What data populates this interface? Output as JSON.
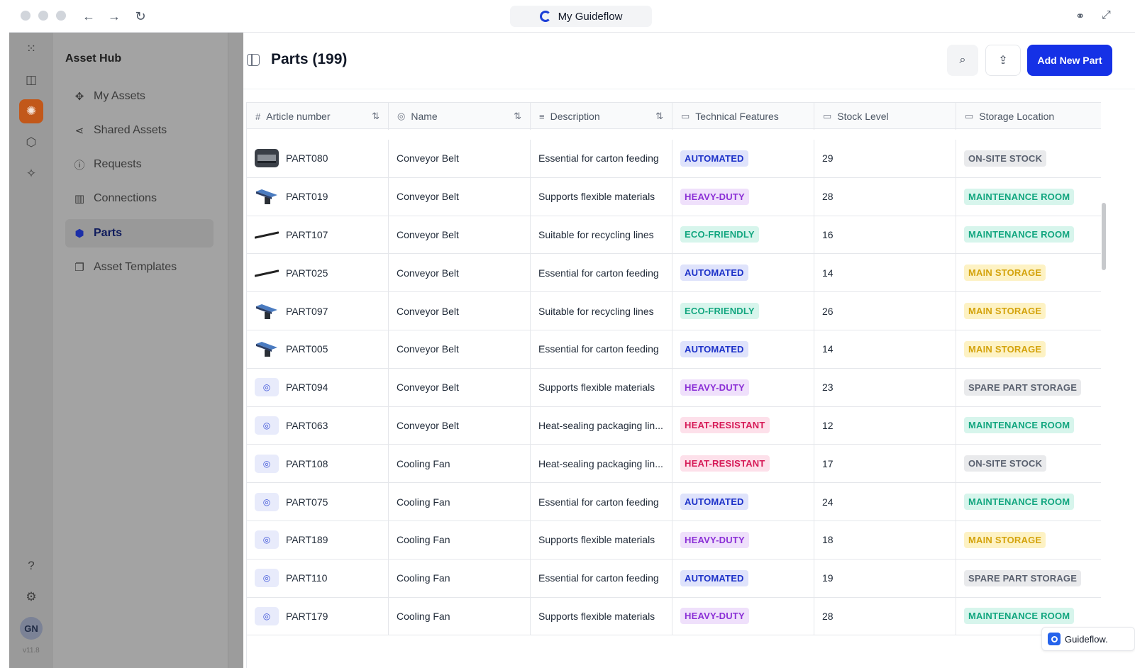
{
  "browser": {
    "tab_title": "My Guideflow"
  },
  "rail": {
    "avatar_initials": "GN",
    "version": "v11.8"
  },
  "sidebar": {
    "title": "Asset Hub",
    "items": [
      {
        "label": "My Assets",
        "icon": "assets-icon"
      },
      {
        "label": "Shared Assets",
        "icon": "share-icon"
      },
      {
        "label": "Requests",
        "icon": "question-icon"
      },
      {
        "label": "Connections",
        "icon": "building-icon"
      },
      {
        "label": "Parts",
        "icon": "hexagon-icon",
        "active": true
      },
      {
        "label": "Asset Templates",
        "icon": "template-icon"
      }
    ]
  },
  "header": {
    "title": "Parts (199)",
    "add_button": "Add New Part"
  },
  "table": {
    "columns": [
      "Article number",
      "Name",
      "Description",
      "Technical Features",
      "Stock Level",
      "Storage Location"
    ],
    "rows": [
      {
        "article": "PART080",
        "name": "Conveyor Belt",
        "description": "Essential for carton feeding",
        "feature": "AUTOMATED",
        "stock": "29",
        "location": "ON-SITE STOCK",
        "thumb": "photo"
      },
      {
        "article": "PART019",
        "name": "Conveyor Belt",
        "description": "Supports flexible materials",
        "feature": "HEAVY-DUTY",
        "stock": "28",
        "location": "MAINTENANCE ROOM",
        "thumb": "belt"
      },
      {
        "article": "PART107",
        "name": "Conveyor Belt",
        "description": "Suitable for recycling lines",
        "feature": "ECO-FRIENDLY",
        "stock": "16",
        "location": "MAINTENANCE ROOM",
        "thumb": "rod"
      },
      {
        "article": "PART025",
        "name": "Conveyor Belt",
        "description": "Essential for carton feeding",
        "feature": "AUTOMATED",
        "stock": "14",
        "location": "MAIN STORAGE",
        "thumb": "rod"
      },
      {
        "article": "PART097",
        "name": "Conveyor Belt",
        "description": "Suitable for recycling lines",
        "feature": "ECO-FRIENDLY",
        "stock": "26",
        "location": "MAIN STORAGE",
        "thumb": "belt"
      },
      {
        "article": "PART005",
        "name": "Conveyor Belt",
        "description": "Essential for carton feeding",
        "feature": "AUTOMATED",
        "stock": "14",
        "location": "MAIN STORAGE",
        "thumb": "belt"
      },
      {
        "article": "PART094",
        "name": "Conveyor Belt",
        "description": "Supports flexible materials",
        "feature": "HEAVY-DUTY",
        "stock": "23",
        "location": "SPARE PART STORAGE",
        "thumb": "placeholder"
      },
      {
        "article": "PART063",
        "name": "Conveyor Belt",
        "description": "Heat-sealing packaging lin...",
        "feature": "HEAT-RESISTANT",
        "stock": "12",
        "location": "MAINTENANCE ROOM",
        "thumb": "placeholder"
      },
      {
        "article": "PART108",
        "name": "Cooling Fan",
        "description": "Heat-sealing packaging lin...",
        "feature": "HEAT-RESISTANT",
        "stock": "17",
        "location": "ON-SITE STOCK",
        "thumb": "placeholder"
      },
      {
        "article": "PART075",
        "name": "Cooling Fan",
        "description": "Essential for carton feeding",
        "feature": "AUTOMATED",
        "stock": "24",
        "location": "MAINTENANCE ROOM",
        "thumb": "placeholder"
      },
      {
        "article": "PART189",
        "name": "Cooling Fan",
        "description": "Supports flexible materials",
        "feature": "HEAVY-DUTY",
        "stock": "18",
        "location": "MAIN STORAGE",
        "thumb": "placeholder"
      },
      {
        "article": "PART110",
        "name": "Cooling Fan",
        "description": "Essential for carton feeding",
        "feature": "AUTOMATED",
        "stock": "19",
        "location": "SPARE PART STORAGE",
        "thumb": "placeholder"
      },
      {
        "article": "PART179",
        "name": "Cooling Fan",
        "description": "Supports flexible materials",
        "feature": "HEAVY-DUTY",
        "stock": "28",
        "location": "MAINTENANCE ROOM",
        "thumb": "placeholder"
      }
    ]
  },
  "feature_colors": {
    "AUTOMATED": {
      "bg": "#dfe3fb",
      "fg": "#1d32c9"
    },
    "HEAVY-DUTY": {
      "bg": "#efe0fb",
      "fg": "#8b2fd6"
    },
    "ECO-FRIENDLY": {
      "bg": "#d7f5ec",
      "fg": "#12a67f"
    },
    "HEAT-RESISTANT": {
      "bg": "#fde0ea",
      "fg": "#d61a57"
    }
  },
  "location_colors": {
    "ON-SITE STOCK": {
      "bg": "#e9eaec",
      "fg": "#5b6270"
    },
    "MAINTENANCE ROOM": {
      "bg": "#d7f5ec",
      "fg": "#12a67f"
    },
    "MAIN STORAGE": {
      "bg": "#fdf2c4",
      "fg": "#d4a30c"
    },
    "SPARE PART STORAGE": {
      "bg": "#e9eaec",
      "fg": "#5b6270"
    }
  },
  "badge": {
    "brand": "Guideflow."
  }
}
